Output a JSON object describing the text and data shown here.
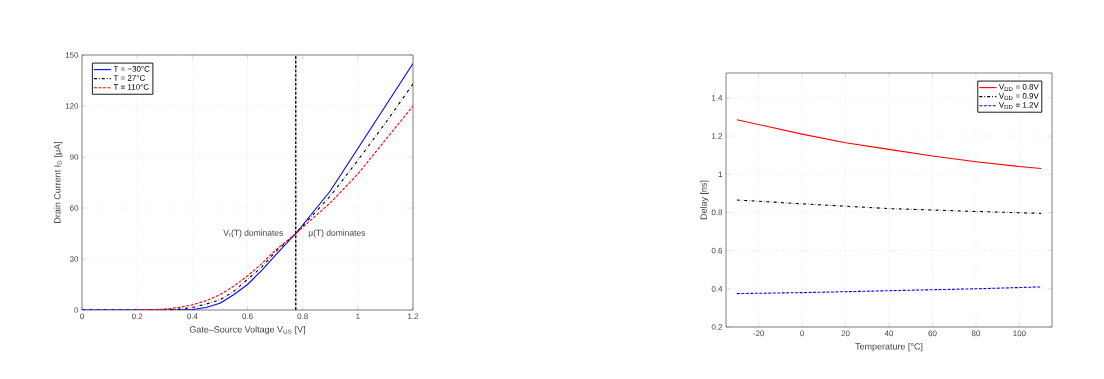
{
  "chart_data": [
    {
      "type": "line",
      "xlabel": "Gate–Source Voltage  V$_{GS}$  [V]",
      "ylabel": "Drain Current  I$_{D}$  [μA]",
      "xlim": [
        0,
        1.2
      ],
      "ylim": [
        0,
        150
      ],
      "xticks": [
        0,
        0.2,
        0.4,
        0.6,
        0.8,
        1,
        1.2
      ],
      "yticks": [
        0,
        30,
        60,
        90,
        120,
        150
      ],
      "grid": true,
      "legend": "top left",
      "series": [
        {
          "name": "T = −30°C",
          "color": "#0000ff",
          "line_style": "solid",
          "x": [
            0,
            0.2,
            0.35,
            0.4,
            0.45,
            0.5,
            0.55,
            0.6,
            0.65,
            0.7,
            0.775,
            0.8,
            0.9,
            1.0,
            1.1,
            1.2
          ],
          "values": [
            0,
            0,
            0,
            0.3,
            1.5,
            4,
            9,
            15,
            23,
            32,
            45,
            50,
            70,
            95,
            120,
            145
          ]
        },
        {
          "name": "T =  27°C",
          "color": "#000000",
          "line_style": "dashdot",
          "x": [
            0,
            0.2,
            0.3,
            0.35,
            0.4,
            0.45,
            0.5,
            0.55,
            0.6,
            0.65,
            0.7,
            0.775,
            0.9,
            1.0,
            1.1,
            1.2
          ],
          "values": [
            0,
            0,
            0,
            0.5,
            1.5,
            3.5,
            6,
            11,
            18,
            25,
            34,
            45,
            67,
            88,
            110,
            133
          ]
        },
        {
          "name": "T = 110°C",
          "color": "#ff0000",
          "line_style": "dashed",
          "x": [
            0.2,
            0.3,
            0.35,
            0.4,
            0.45,
            0.5,
            0.55,
            0.6,
            0.65,
            0.7,
            0.775,
            0.9,
            1.0,
            1.1,
            1.2
          ],
          "values": [
            0,
            0.5,
            1.5,
            3,
            5.5,
            9,
            14,
            20,
            27,
            35,
            45,
            63,
            80,
            100,
            120
          ]
        }
      ],
      "ref_lines": [
        {
          "axis": "x",
          "value": 0.775,
          "color": "#000000",
          "line_style": "dashed"
        }
      ],
      "annotations": [
        "V$_{t}$(T) dominates",
        "μ(T) dominates"
      ]
    },
    {
      "type": "line",
      "xlabel": "Temperature [°C]",
      "ylabel": "Delay [ns]",
      "xlim": [
        -35,
        115
      ],
      "ylim": [
        0.2,
        1.53
      ],
      "xticks": [
        -20,
        0,
        20,
        40,
        60,
        80,
        100
      ],
      "yticks": [
        0.2,
        0.4,
        0.6,
        0.8,
        1,
        1.2,
        1.4
      ],
      "grid": true,
      "legend": "top right",
      "series": [
        {
          "name": "V$_{DD}$ = 0.8V",
          "color": "#ff0000",
          "line_style": "solid",
          "x": [
            -30,
            -20,
            0,
            20,
            40,
            60,
            80,
            100,
            110
          ],
          "values": [
            1.285,
            1.26,
            1.21,
            1.165,
            1.13,
            1.095,
            1.065,
            1.04,
            1.03
          ]
        },
        {
          "name": "V$_{DD}$ = 0.9V",
          "color": "#000000",
          "line_style": "dashdot",
          "x": [
            -30,
            0,
            40,
            80,
            110
          ],
          "values": [
            0.865,
            0.845,
            0.82,
            0.805,
            0.795
          ]
        },
        {
          "name": "V$_{DD}$ = 1.2V",
          "color": "#0000ff",
          "line_style": "dashed",
          "x": [
            -30,
            0,
            40,
            80,
            110
          ],
          "values": [
            0.375,
            0.38,
            0.39,
            0.4,
            0.41
          ]
        }
      ]
    }
  ]
}
